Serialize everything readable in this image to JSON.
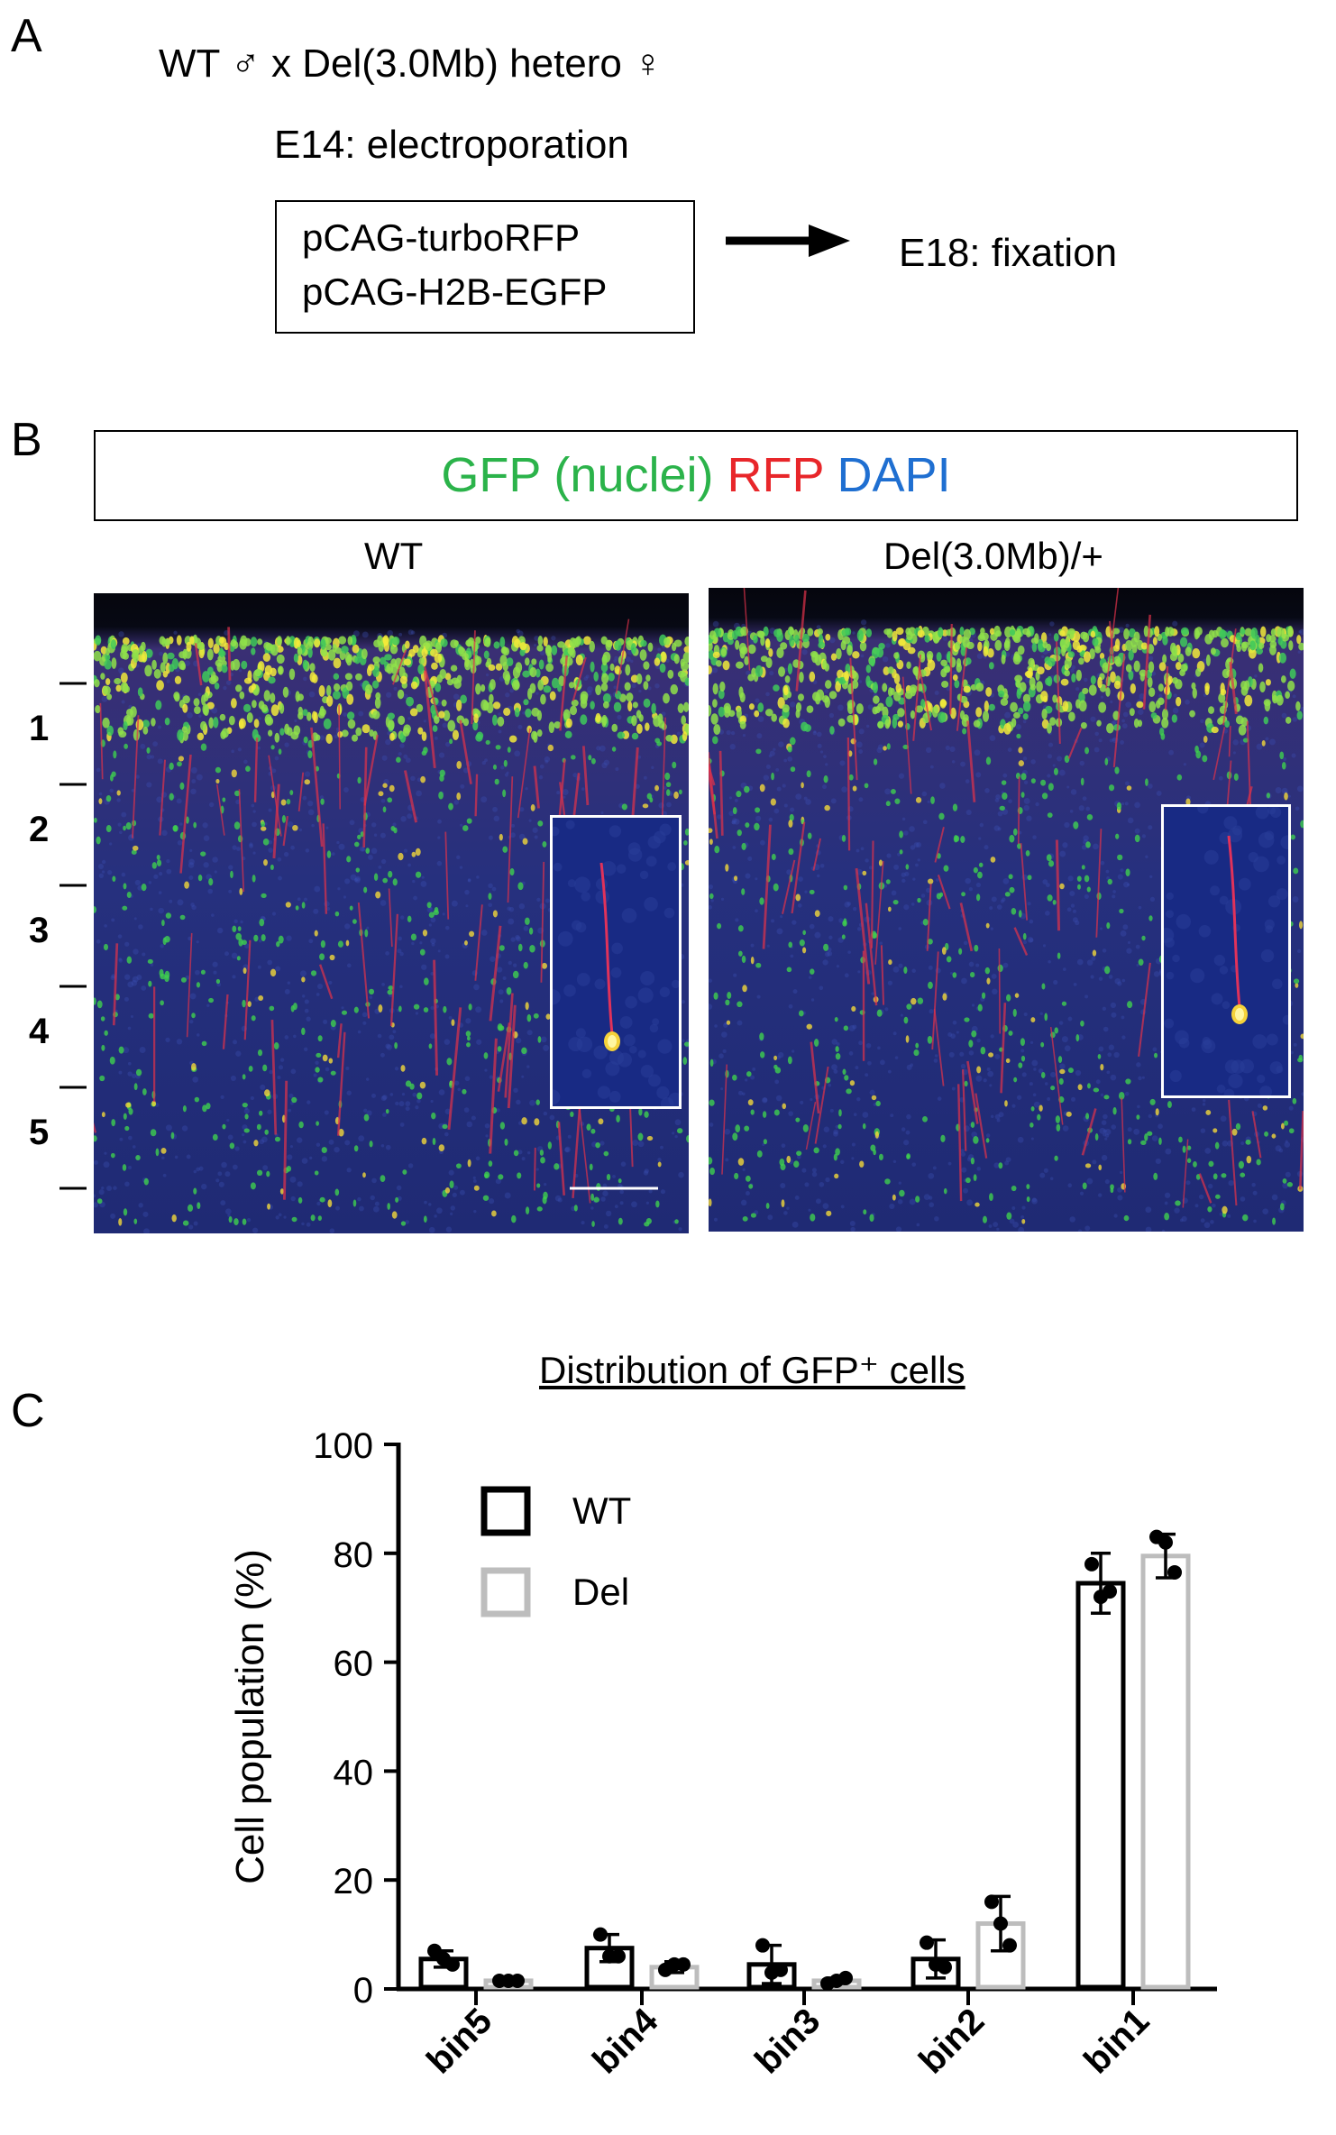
{
  "panelA": {
    "letter": "A",
    "cross": "WT ♂ x Del(3.0Mb) hetero ♀",
    "electroporation": "E14: electroporation",
    "plasmids": [
      "pCAG-turboRFP",
      "pCAG-H2B-EGFP"
    ],
    "fixation": "E18: fixation"
  },
  "panelB": {
    "letter": "B",
    "legend": {
      "gfp": "GFP (nuclei)",
      "rfp": "RFP",
      "dapi": "DAPI"
    },
    "wt_title": "WT",
    "del_title": "Del(3.0Mb)/+",
    "bins": [
      "1",
      "2",
      "3",
      "4",
      "5"
    ],
    "colors": {
      "gfp": "#2bb34a",
      "rfp": "#e8262a",
      "dapi": "#1f6fd1",
      "tissue": "#24307a"
    }
  },
  "panelC": {
    "letter": "C",
    "chart_data": {
      "type": "bar",
      "title": "Distribution of GFP⁺ cells",
      "ylabel": "Cell population (%)",
      "xlabel": "",
      "ylim": [
        0,
        100
      ],
      "yticks": [
        "0",
        "20",
        "40",
        "60",
        "80",
        "100"
      ],
      "categories": [
        "bin5",
        "bin4",
        "bin3",
        "bin2",
        "bin1"
      ],
      "legend_position": "top-left",
      "series": [
        {
          "name": "WT",
          "color": "#000000",
          "values": [
            5.5,
            7.5,
            4.5,
            5.5,
            74.5
          ],
          "sd": [
            1.5,
            2.5,
            3.5,
            3.5,
            5.5
          ],
          "points": [
            [
              7,
              5.5,
              4.5
            ],
            [
              10,
              6,
              6
            ],
            [
              8,
              3,
              3.5
            ],
            [
              8.5,
              4.5,
              4
            ],
            [
              78,
              72,
              73
            ]
          ]
        },
        {
          "name": "Del",
          "color": "#bdbdbd",
          "values": [
            1.5,
            4,
            1.5,
            12,
            79.5
          ],
          "sd": [
            0.5,
            1,
            0.5,
            5,
            4
          ],
          "points": [
            [
              1.5,
              1.5,
              1.5
            ],
            [
              3.5,
              4.5,
              4.5
            ],
            [
              1,
              1.5,
              2
            ],
            [
              16,
              12,
              8
            ],
            [
              83,
              82,
              76.5
            ]
          ]
        }
      ]
    }
  }
}
